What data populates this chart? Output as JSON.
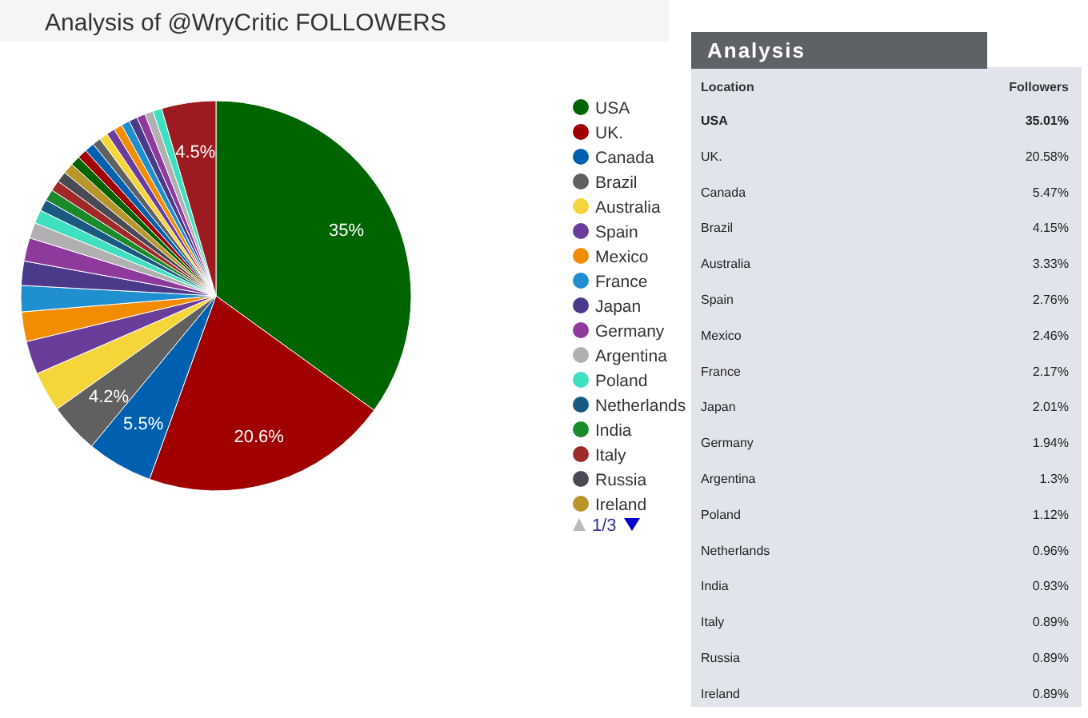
{
  "chart_data": {
    "type": "pie",
    "title": "Analysis of @WryCritic FOLLOWERS",
    "categories": [
      "USA",
      "UK.",
      "Canada",
      "Brazil",
      "Australia",
      "Spain",
      "Mexico",
      "France",
      "Japan",
      "Germany",
      "Argentina",
      "Poland",
      "Netherlands",
      "India",
      "Italy",
      "Russia",
      "Ireland",
      null,
      null,
      null,
      null,
      null,
      null,
      null,
      null,
      null,
      null,
      null,
      null,
      null
    ],
    "values": [
      35.01,
      20.58,
      5.47,
      4.15,
      3.33,
      2.76,
      2.46,
      2.17,
      2.01,
      1.94,
      1.3,
      1.12,
      0.96,
      0.93,
      0.89,
      0.89,
      0.89,
      0.8,
      0.8,
      0.8,
      0.7,
      0.7,
      0.7,
      0.7,
      0.7,
      0.7,
      0.7,
      0.7,
      0.74,
      4.5
    ],
    "colors": [
      "#006400",
      "#a00000",
      "#0060b0",
      "#606060",
      "#f5d63a",
      "#6a3d9a",
      "#f28c00",
      "#1f8fd0",
      "#4b3a8a",
      "#8e3a9c",
      "#b0b0b0",
      "#3ee0c0",
      "#1a5a80",
      "#1a8a2a",
      "#a02828",
      "#4a4a55",
      "#b8962a",
      "#006400",
      "#a00000",
      "#0060b0",
      "#606060",
      "#f5d63a",
      "#6a3d9a",
      "#f28c00",
      "#1f8fd0",
      "#4b3a8a",
      "#8e3a9c",
      "#b0b0b0",
      "#3ee0c0",
      "#9b1b20"
    ],
    "value_labels": [
      "35%",
      "20.6%",
      "5.5%",
      "4.2%",
      null,
      null,
      null,
      null,
      null,
      null,
      null,
      null,
      null,
      null,
      null,
      null,
      null,
      null,
      null,
      null,
      null,
      null,
      null,
      null,
      null,
      null,
      null,
      null,
      null,
      "4.5%"
    ],
    "annotations": [
      "Analysis",
      "Location",
      "Followers",
      "1/3",
      "35.01%",
      "20.58%",
      "5.47%",
      "4.15%",
      "3.33%",
      "2.76%",
      "2.46%",
      "2.17%",
      "2.01%",
      "1.94%",
      "1.3%",
      "1.12%",
      "0.96%",
      "0.93%",
      "0.89%",
      "0.89%",
      "0.89%"
    ],
    "legend": "right"
  }
}
